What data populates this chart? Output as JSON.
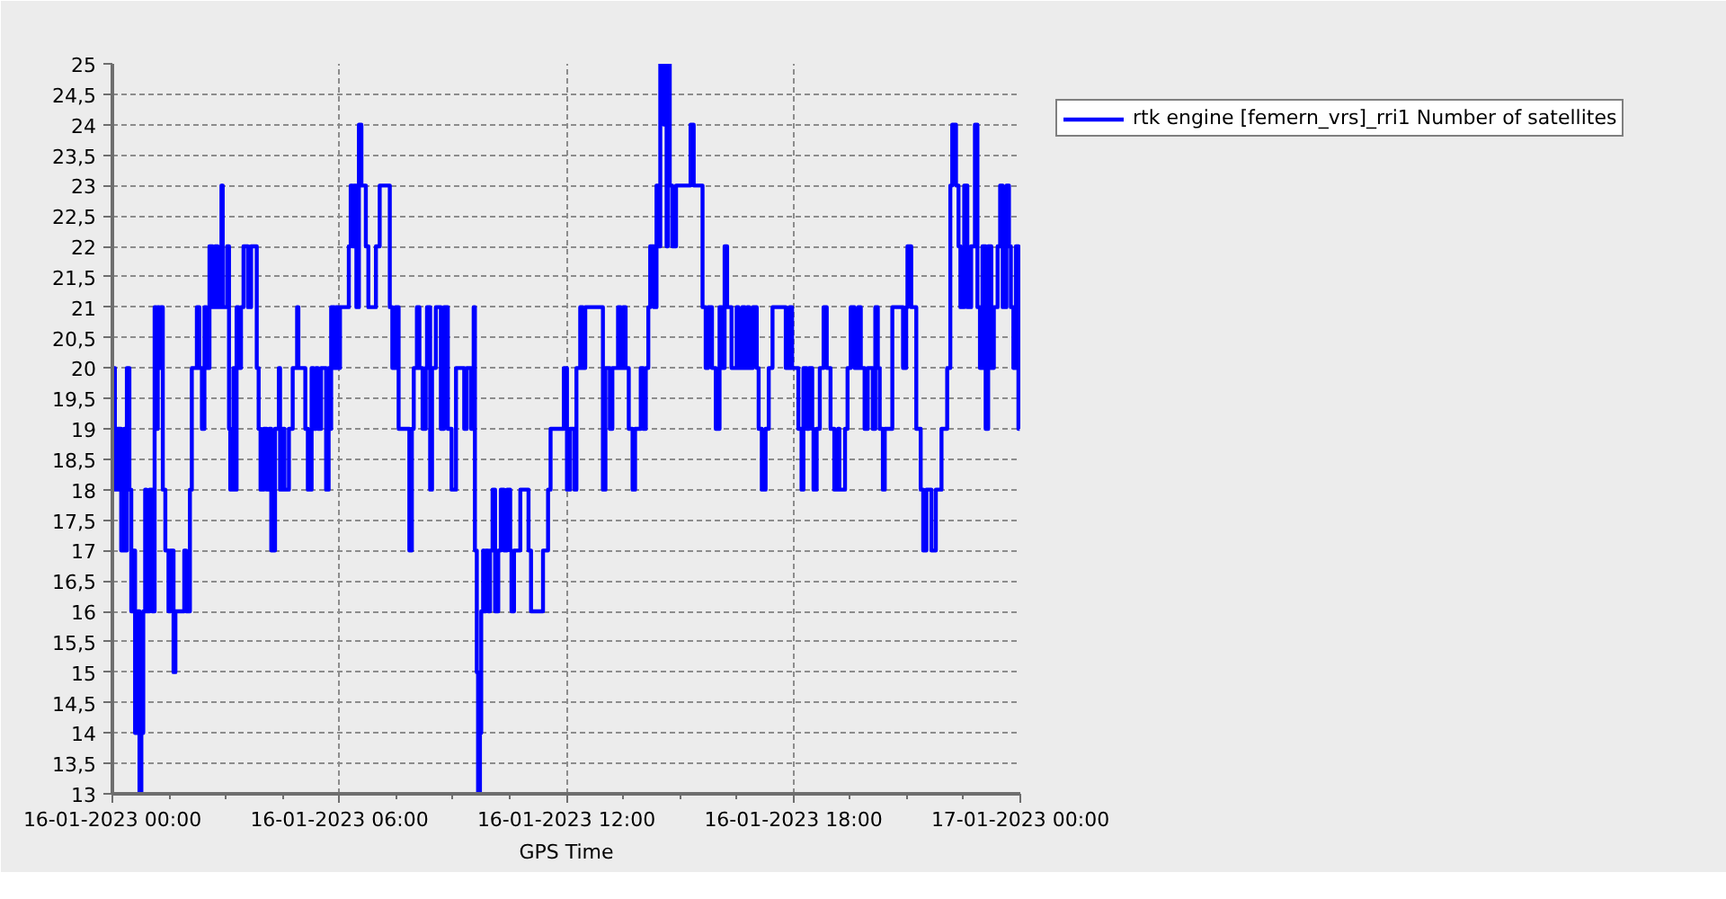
{
  "chart_data": {
    "type": "step",
    "xlabel": "GPS Time",
    "x": [
      "2023-01-16T00:00",
      "2023-01-16T00:04",
      "2023-01-16T00:07",
      "2023-01-16T00:10",
      "2023-01-16T00:11",
      "2023-01-16T00:14",
      "2023-01-16T00:19",
      "2023-01-16T00:21",
      "2023-01-16T00:23",
      "2023-01-16T00:27",
      "2023-01-16T00:30",
      "2023-01-16T00:33",
      "2023-01-16T00:36",
      "2023-01-16T00:40",
      "2023-01-16T00:43",
      "2023-01-16T00:46",
      "2023-01-16T00:49",
      "2023-01-16T00:52",
      "2023-01-16T00:54",
      "2023-01-16T00:59",
      "2023-01-16T01:03",
      "2023-01-16T01:07",
      "2023-01-16T01:09",
      "2023-01-16T01:12",
      "2023-01-16T01:14",
      "2023-01-16T01:17",
      "2023-01-16T01:20",
      "2023-01-16T01:24",
      "2023-01-16T01:29",
      "2023-01-16T01:32",
      "2023-01-16T01:37",
      "2023-01-16T01:40",
      "2023-01-16T01:54",
      "2023-01-16T01:57",
      "2023-01-16T02:03",
      "2023-01-16T02:06",
      "2023-01-16T02:14",
      "2023-01-16T02:18",
      "2023-01-16T02:22",
      "2023-01-16T02:26",
      "2023-01-16T02:29",
      "2023-01-16T02:34",
      "2023-01-16T02:39",
      "2023-01-16T02:43",
      "2023-01-16T02:47",
      "2023-01-16T02:53",
      "2023-01-16T02:55",
      "2023-01-16T03:02",
      "2023-01-16T03:05",
      "2023-01-16T03:07",
      "2023-01-16T03:12",
      "2023-01-16T03:15",
      "2023-01-16T03:17",
      "2023-01-16T03:20",
      "2023-01-16T03:24",
      "2023-01-16T03:28",
      "2023-01-16T03:35",
      "2023-01-16T03:40",
      "2023-01-16T03:49",
      "2023-01-16T03:52",
      "2023-01-16T03:55",
      "2023-01-16T04:00",
      "2023-01-16T04:05",
      "2023-01-16T04:09",
      "2023-01-16T04:12",
      "2023-01-16T04:18",
      "2023-01-16T04:24",
      "2023-01-16T04:26",
      "2023-01-16T04:30",
      "2023-01-16T04:33",
      "2023-01-16T04:40",
      "2023-01-16T04:46",
      "2023-01-16T04:53",
      "2023-01-16T04:55",
      "2023-01-16T05:06",
      "2023-01-16T05:10",
      "2023-01-16T05:16",
      "2023-01-16T05:19",
      "2023-01-16T05:23",
      "2023-01-16T05:26",
      "2023-01-16T05:31",
      "2023-01-16T05:39",
      "2023-01-16T05:43",
      "2023-01-16T05:44",
      "2023-01-16T05:47",
      "2023-01-16T05:52",
      "2023-01-16T05:55",
      "2023-01-16T05:58",
      "2023-01-16T06:01",
      "2023-01-16T06:15",
      "2023-01-16T06:18",
      "2023-01-16T06:21",
      "2023-01-16T06:23",
      "2023-01-16T06:27",
      "2023-01-16T06:31",
      "2023-01-16T06:35",
      "2023-01-16T06:42",
      "2023-01-16T06:46",
      "2023-01-16T06:58",
      "2023-01-16T07:04",
      "2023-01-16T07:20",
      "2023-01-16T07:24",
      "2023-01-16T07:29",
      "2023-01-16T07:34",
      "2023-01-16T07:51",
      "2023-01-16T07:55",
      "2023-01-16T07:58",
      "2023-01-16T08:03",
      "2023-01-16T08:07",
      "2023-01-16T08:12",
      "2023-01-16T08:17",
      "2023-01-16T08:19",
      "2023-01-16T08:24",
      "2023-01-16T08:27",
      "2023-01-16T08:33",
      "2023-01-16T08:41",
      "2023-01-16T08:46",
      "2023-01-16T08:52",
      "2023-01-16T08:58",
      "2023-01-16T09:05",
      "2023-01-16T09:18",
      "2023-01-16T09:22",
      "2023-01-16T09:29",
      "2023-01-16T09:33",
      "2023-01-16T09:35",
      "2023-01-16T09:38",
      "2023-01-16T09:40",
      "2023-01-16T09:43",
      "2023-01-16T09:45",
      "2023-01-16T09:48",
      "2023-01-16T09:50",
      "2023-01-16T09:52",
      "2023-01-16T09:56",
      "2023-01-16T09:59",
      "2023-01-16T10:03",
      "2023-01-16T10:07",
      "2023-01-16T10:12",
      "2023-01-16T10:16",
      "2023-01-16T10:21",
      "2023-01-16T10:26",
      "2023-01-16T10:31",
      "2023-01-16T10:33",
      "2023-01-16T10:37",
      "2023-01-16T10:47",
      "2023-01-16T11:00",
      "2023-01-16T11:04",
      "2023-01-16T11:23",
      "2023-01-16T11:31",
      "2023-01-16T11:35",
      "2023-01-16T11:56",
      "2023-01-16T12:01",
      "2023-01-16T12:06",
      "2023-01-16T12:13",
      "2023-01-16T12:16",
      "2023-01-16T12:22",
      "2023-01-16T12:26",
      "2023-01-16T12:30",
      "2023-01-16T12:58",
      "2023-01-16T13:02",
      "2023-01-16T13:09",
      "2023-01-16T13:13",
      "2023-01-16T13:22",
      "2023-01-16T13:26",
      "2023-01-16T13:30",
      "2023-01-16T13:34",
      "2023-01-16T13:39",
      "2023-01-16T13:45",
      "2023-01-16T13:49",
      "2023-01-16T13:58",
      "2023-01-16T14:02",
      "2023-01-16T14:06",
      "2023-01-16T14:10",
      "2023-01-16T14:13",
      "2023-01-16T14:19",
      "2023-01-16T14:23",
      "2023-01-16T14:26",
      "2023-01-16T14:29",
      "2023-01-16T14:35",
      "2023-01-16T14:37",
      "2023-01-16T14:39",
      "2023-01-16T14:41",
      "2023-01-16T14:44",
      "2023-01-16T14:48",
      "2023-01-16T14:54",
      "2023-01-16T15:17",
      "2023-01-16T15:22",
      "2023-01-16T15:36",
      "2023-01-16T15:41",
      "2023-01-16T15:45",
      "2023-01-16T15:51",
      "2023-01-16T15:57",
      "2023-01-16T16:03",
      "2023-01-16T16:07",
      "2023-01-16T16:11",
      "2023-01-16T16:15",
      "2023-01-16T16:22",
      "2023-01-16T16:30",
      "2023-01-16T16:33",
      "2023-01-16T16:39",
      "2023-01-16T16:43",
      "2023-01-16T16:47",
      "2023-01-16T16:50",
      "2023-01-16T16:56",
      "2023-01-16T17:02",
      "2023-01-16T17:05",
      "2023-01-16T17:10",
      "2023-01-16T17:16",
      "2023-01-16T17:21",
      "2023-01-16T17:27",
      "2023-01-16T17:48",
      "2023-01-16T17:54",
      "2023-01-16T17:58",
      "2023-01-16T18:08",
      "2023-01-16T18:13",
      "2023-01-16T18:16",
      "2023-01-16T18:21",
      "2023-01-16T18:25",
      "2023-01-16T18:30",
      "2023-01-16T18:32",
      "2023-01-16T18:37",
      "2023-01-16T18:42",
      "2023-01-16T18:48",
      "2023-01-16T18:53",
      "2023-01-16T18:59",
      "2023-01-16T19:05",
      "2023-01-16T19:11",
      "2023-01-16T19:13",
      "2023-01-16T19:22",
      "2023-01-16T19:26",
      "2023-01-16T19:31",
      "2023-01-16T19:37",
      "2023-01-16T19:43",
      "2023-01-16T19:47",
      "2023-01-16T19:53",
      "2023-01-16T19:58",
      "2023-01-16T20:06",
      "2023-01-16T20:10",
      "2023-01-16T20:14",
      "2023-01-16T20:17",
      "2023-01-16T20:22",
      "2023-01-16T20:25",
      "2023-01-16T20:37",
      "2023-01-16T20:54",
      "2023-01-16T20:59",
      "2023-01-16T21:01",
      "2023-01-16T21:07",
      "2023-01-16T21:15",
      "2023-01-16T21:22",
      "2023-01-16T21:26",
      "2023-01-16T21:31",
      "2023-01-16T21:39",
      "2023-01-16T21:46",
      "2023-01-16T21:55",
      "2023-01-16T22:04",
      "2023-01-16T22:09",
      "2023-01-16T22:12",
      "2023-01-16T22:18",
      "2023-01-16T22:22",
      "2023-01-16T22:25",
      "2023-01-16T22:31",
      "2023-01-16T22:36",
      "2023-01-16T22:42",
      "2023-01-16T22:48",
      "2023-01-16T22:52",
      "2023-01-16T22:56",
      "2023-01-16T23:00",
      "2023-01-16T23:05",
      "2023-01-16T23:09",
      "2023-01-16T23:14",
      "2023-01-16T23:18",
      "2023-01-16T23:24",
      "2023-01-16T23:28",
      "2023-01-16T23:32",
      "2023-01-16T23:38",
      "2023-01-16T23:42",
      "2023-01-16T23:45",
      "2023-01-16T23:49",
      "2023-01-16T23:53",
      "2023-01-16T23:57",
      "2023-01-16T23:59"
    ],
    "series": [
      {
        "name": "rtk engine [femern_vrs]_rri1 Number of satellites",
        "color": "#0000ff",
        "values": [
          20,
          18,
          19,
          18,
          19,
          17,
          19,
          17,
          20,
          18,
          16,
          17,
          14,
          16,
          13,
          14,
          16,
          18,
          16,
          18,
          16,
          21,
          19,
          21,
          20,
          21,
          18,
          17,
          16,
          17,
          15,
          16,
          17,
          16,
          18,
          20,
          21,
          20,
          19,
          21,
          20,
          22,
          21,
          22,
          21,
          23,
          21,
          22,
          19,
          18,
          20,
          18,
          21,
          20,
          21,
          22,
          21,
          22,
          20,
          19,
          18,
          19,
          18,
          19,
          17,
          19,
          20,
          18,
          19,
          18,
          19,
          20,
          21,
          20,
          19,
          18,
          20,
          19,
          20,
          19,
          20,
          18,
          20,
          19,
          21,
          20,
          21,
          20,
          21,
          22,
          23,
          22,
          23,
          21,
          24,
          23,
          22,
          21,
          22,
          23,
          21,
          20,
          21,
          19,
          17,
          19,
          20,
          21,
          20,
          19,
          20,
          21,
          18,
          20,
          21,
          19,
          21,
          19,
          18,
          20,
          19,
          20,
          19,
          21,
          17,
          15,
          13,
          14,
          16,
          17,
          16,
          17,
          16,
          17,
          18,
          16,
          17,
          18,
          17,
          18,
          17,
          16,
          17,
          18,
          17,
          16,
          17,
          18,
          19,
          20,
          18,
          19,
          18,
          20,
          21,
          20,
          21,
          18,
          20,
          19,
          20,
          21,
          20,
          21,
          20,
          19,
          18,
          19,
          20,
          19,
          20,
          21,
          22,
          21,
          23,
          22,
          25,
          24,
          25,
          22,
          25,
          23,
          22,
          23,
          24,
          23,
          21,
          20,
          21,
          20,
          19,
          21,
          20,
          22,
          21,
          20,
          21,
          20,
          21,
          20,
          21,
          20,
          21,
          20,
          19,
          18,
          19,
          20,
          21,
          20,
          21,
          20,
          19,
          18,
          20,
          19,
          20,
          19,
          18,
          19,
          20,
          21,
          20,
          19,
          18,
          19,
          18,
          19,
          20,
          21,
          20,
          21,
          20,
          19,
          20,
          19,
          21,
          20,
          19,
          18,
          19,
          21,
          20,
          21,
          22,
          21,
          19,
          18,
          17,
          18,
          17,
          18,
          19,
          20,
          23,
          24,
          23,
          22,
          21,
          23,
          21,
          22,
          24,
          21,
          20,
          22,
          19,
          22,
          20,
          21,
          22,
          23,
          21,
          23,
          22,
          21,
          20,
          22,
          19,
          19
        ]
      }
    ],
    "xlim": [
      "2023-01-16T00:00",
      "2023-01-17T00:00"
    ],
    "xticks": [
      {
        "value": "2023-01-16T00:00",
        "label": "16-01-2023 00:00"
      },
      {
        "value": "2023-01-16T01:30",
        "label": null
      },
      {
        "value": "2023-01-16T03:00",
        "label": null
      },
      {
        "value": "2023-01-16T04:30",
        "label": null
      },
      {
        "value": "2023-01-16T06:00",
        "label": "16-01-2023 06:00"
      },
      {
        "value": "2023-01-16T07:30",
        "label": null
      },
      {
        "value": "2023-01-16T09:00",
        "label": null
      },
      {
        "value": "2023-01-16T10:30",
        "label": null
      },
      {
        "value": "2023-01-16T12:00",
        "label": "16-01-2023 12:00"
      },
      {
        "value": "2023-01-16T13:30",
        "label": null
      },
      {
        "value": "2023-01-16T15:00",
        "label": null
      },
      {
        "value": "2023-01-16T16:30",
        "label": null
      },
      {
        "value": "2023-01-16T18:00",
        "label": "16-01-2023 18:00"
      },
      {
        "value": "2023-01-16T19:30",
        "label": null
      },
      {
        "value": "2023-01-16T21:00",
        "label": null
      },
      {
        "value": "2023-01-16T22:30",
        "label": null
      },
      {
        "value": "2023-01-17T00:00",
        "label": "17-01-2023 00:00"
      }
    ],
    "ylim": [
      13,
      25
    ],
    "yticks": [
      13,
      {
        "value": 13.5,
        "label": "13,5"
      },
      14,
      {
        "value": 14.5,
        "label": "14,5"
      },
      15,
      {
        "value": 15.5,
        "label": "15,5"
      },
      16,
      {
        "value": 16.5,
        "label": "16,5"
      },
      17,
      {
        "value": 17.5,
        "label": "17,5"
      },
      18,
      {
        "value": 18.5,
        "label": "18,5"
      },
      19,
      {
        "value": 19.5,
        "label": "19,5"
      },
      20,
      {
        "value": 20.5,
        "label": "20,5"
      },
      21,
      {
        "value": 21.5,
        "label": "21,5"
      },
      22,
      {
        "value": 22.5,
        "label": "22,5"
      },
      23,
      {
        "value": 23.5,
        "label": "23,5"
      },
      24,
      {
        "value": 24.5,
        "label": "24,5"
      },
      25
    ],
    "grid": true,
    "legend": "top right"
  }
}
